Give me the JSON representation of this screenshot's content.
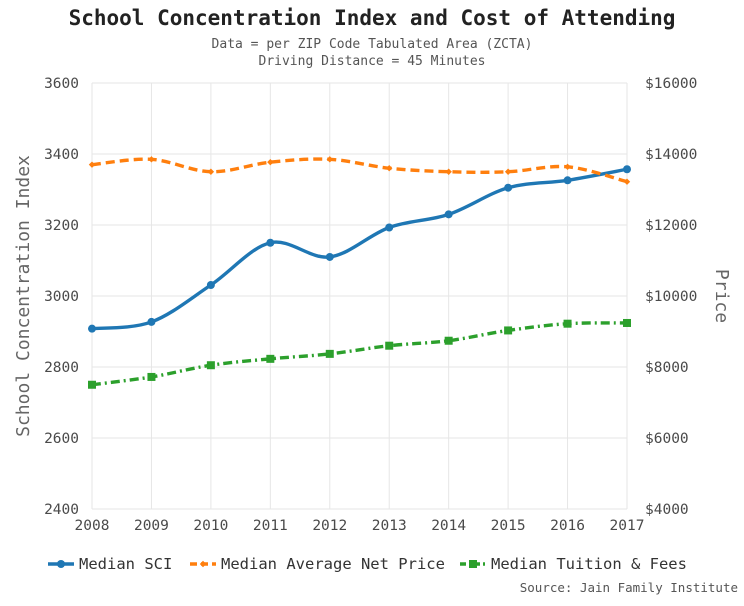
{
  "chart_data": {
    "type": "line",
    "title": "School Concentration Index and Cost of Attending",
    "subtitle_lines": [
      "Data = per ZIP Code Tabulated Area (ZCTA)",
      "Driving Distance = 45 Minutes"
    ],
    "ylabel": "School Concentration Index",
    "y2label": "Price",
    "source": "Source: Jain Family Institute",
    "x": [
      2008,
      2009,
      2010,
      2011,
      2012,
      2013,
      2014,
      2015,
      2016,
      2017
    ],
    "x_tick_labels": [
      "2008",
      "2009",
      "2010",
      "2011",
      "2012",
      "2013",
      "2014",
      "2015",
      "2016",
      "2017"
    ],
    "ylim": [
      2400,
      3600
    ],
    "y_ticks": [
      2400,
      2600,
      2800,
      3000,
      3200,
      3400,
      3600
    ],
    "y_tick_labels": [
      "2400",
      "2600",
      "2800",
      "3000",
      "3200",
      "3400",
      "3600"
    ],
    "y2lim": [
      4000,
      16000
    ],
    "y2_ticks": [
      4000,
      6000,
      8000,
      10000,
      12000,
      14000,
      16000
    ],
    "y2_tick_labels": [
      "$4000",
      "$6000",
      "$8000",
      "$10000",
      "$12000",
      "$14000",
      "$16000"
    ],
    "grid": true,
    "legend_position": "bottom",
    "series": [
      {
        "name": "Median SCI",
        "axis": "left",
        "color": "#1f77b4",
        "style": "solid",
        "marker": "circle",
        "values": [
          2908,
          2927,
          3031,
          3150,
          3110,
          3193,
          3230,
          3305,
          3326,
          3357
        ]
      },
      {
        "name": "Median Average Net Price",
        "axis": "right",
        "color": "#ff7f0e",
        "style": "dash",
        "marker": "diamond",
        "values": [
          13700,
          13850,
          13500,
          13770,
          13850,
          13600,
          13500,
          13500,
          13640,
          13220
        ]
      },
      {
        "name": "Median Tuition & Fees",
        "axis": "right",
        "color": "#2ca02c",
        "style": "dashdot",
        "marker": "square",
        "values": [
          7500,
          7720,
          8050,
          8230,
          8370,
          8600,
          8740,
          9030,
          9220,
          9240
        ]
      }
    ]
  }
}
